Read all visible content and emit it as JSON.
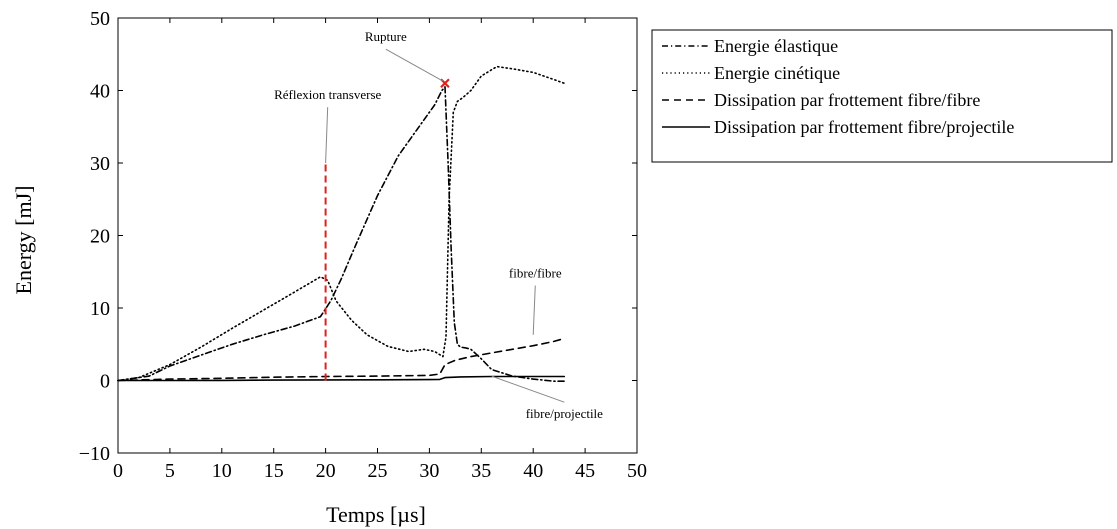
{
  "chart_data": {
    "type": "line",
    "xlabel": "Temps [µs]",
    "ylabel": "Energy [mJ]",
    "xlim": [
      0,
      50
    ],
    "ylim": [
      -10,
      50
    ],
    "xticks": [
      0,
      5,
      10,
      15,
      20,
      25,
      30,
      35,
      40,
      45,
      50
    ],
    "xtick_labels": [
      "0",
      "5",
      "10",
      "15",
      "20",
      "25",
      "30",
      "35",
      "40",
      "45",
      "50"
    ],
    "yticks": [
      -10,
      0,
      10,
      20,
      30,
      40,
      50
    ],
    "ytick_labels": [
      "−10",
      "0",
      "10",
      "20",
      "30",
      "40",
      "50"
    ],
    "grid": false,
    "legend_position": "outside-right-top",
    "series": [
      {
        "name": "Energie élastique",
        "style": "dashdot",
        "color": "#000000",
        "x": [
          0,
          3,
          5,
          8,
          11,
          14,
          17,
          19.5,
          20.5,
          21.5,
          23,
          25,
          27,
          29,
          30.5,
          31.2,
          31.5,
          31.8,
          32.1,
          32.4,
          32.7,
          33,
          33.5,
          34,
          35,
          36,
          38,
          40,
          42,
          43
        ],
        "y": [
          0,
          0.6,
          2,
          3.5,
          5,
          6.3,
          7.5,
          8.8,
          11,
          14,
          19,
          25.5,
          31,
          35,
          38,
          40,
          40.5,
          30,
          18,
          8,
          5,
          4.6,
          4.5,
          4.3,
          3,
          1.5,
          0.6,
          0.2,
          -0.1,
          -0.1
        ]
      },
      {
        "name": "Energie cinétique",
        "style": "dotted",
        "color": "#000000",
        "x": [
          0,
          2,
          5,
          8,
          11,
          14,
          17,
          19.5,
          20.2,
          21,
          22.5,
          24,
          26,
          28,
          29.5,
          30.5,
          31.3,
          31.6,
          31.9,
          32.3,
          32.7,
          33.2,
          34,
          35,
          36.5,
          38,
          40,
          42,
          43
        ],
        "y": [
          0,
          0.4,
          2.2,
          4.6,
          7.2,
          9.7,
          12.2,
          14.3,
          13.8,
          11,
          8.3,
          6.3,
          4.7,
          4,
          4.3,
          4,
          3.3,
          6,
          25,
          37,
          38.5,
          39,
          40,
          42,
          43.3,
          43,
          42.5,
          41.5,
          41
        ]
      },
      {
        "name": "Dissipation par frottement fibre/fibre",
        "style": "dashed",
        "color": "#000000",
        "x": [
          0,
          5,
          10,
          15,
          20,
          25,
          30,
          31,
          31.5,
          32.5,
          34,
          36,
          38,
          40,
          42,
          43
        ],
        "y": [
          0,
          0.2,
          0.3,
          0.45,
          0.55,
          0.6,
          0.7,
          0.9,
          2.2,
          2.8,
          3.3,
          3.8,
          4.3,
          4.8,
          5.4,
          5.8
        ]
      },
      {
        "name": "Dissipation par frottement fibre/projectile",
        "style": "solid",
        "color": "#000000",
        "x": [
          0,
          5,
          10,
          15,
          20,
          25,
          30,
          31,
          31.5,
          33,
          36,
          40,
          43
        ],
        "y": [
          0,
          0,
          0.02,
          0.05,
          0.08,
          0.1,
          0.12,
          0.15,
          0.4,
          0.5,
          0.55,
          0.55,
          0.55
        ]
      }
    ],
    "vertical_marker": {
      "x": 20,
      "y_from": 0,
      "y_to": 30,
      "color": "#e0201b",
      "style": "dashed"
    },
    "point_marker": {
      "x": 31.5,
      "y": 41,
      "color": "#e0201b",
      "shape": "x"
    },
    "annotations": [
      {
        "text": "Réflexion transverse",
        "text_x": 20.2,
        "text_y": 38.8,
        "target_x": 20,
        "target_y": 30
      },
      {
        "text": "Rupture",
        "text_x": 25.8,
        "text_y": 46.8,
        "target_x": 31.3,
        "target_y": 41.3
      },
      {
        "text": "fibre/fibre",
        "text_x": 40.2,
        "text_y": 14.2,
        "target_x": 40,
        "target_y": 6.3
      },
      {
        "text": "fibre/projectile",
        "text_x": 43,
        "text_y": -5.2,
        "target_x": 36,
        "target_y": 0.6
      }
    ]
  }
}
